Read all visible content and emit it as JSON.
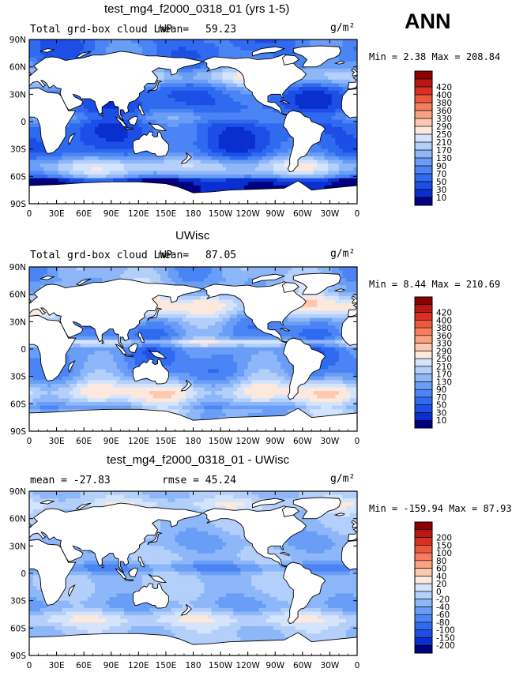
{
  "season": "ANN",
  "units": "g/m²",
  "lat_labels": [
    "90N",
    "60N",
    "30N",
    "0",
    "30S",
    "60S",
    "90S"
  ],
  "lon_labels": [
    "0",
    "30E",
    "60E",
    "90E",
    "120E",
    "150E",
    "180",
    "150W",
    "120W",
    "90W",
    "60W",
    "30W",
    "0"
  ],
  "colors": {
    "abs_scale": [
      "#000080",
      "#0a2fcf",
      "#1d4fe6",
      "#2f6af0",
      "#4b84f4",
      "#6a9ef6",
      "#8db7f8",
      "#b3cffa",
      "#d4e4fc",
      "#fde8de",
      "#fcc8b0",
      "#f9a383",
      "#f47e5e",
      "#ec5a3d",
      "#d93024",
      "#b71814",
      "#8b0000"
    ],
    "diff_scale": [
      "#000080",
      "#0a2fcf",
      "#1d4fe6",
      "#2f6af0",
      "#4b84f4",
      "#6a9ef6",
      "#8db7f8",
      "#b3cffa",
      "#d4e4fc",
      "#fde8de",
      "#fcc8b0",
      "#f9a383",
      "#f47e5e",
      "#ec5a3d",
      "#d93024",
      "#b71814",
      "#8b0000"
    ],
    "land": "#ffffff",
    "coast": "#000000"
  },
  "chart_data": [
    {
      "type": "heatmap",
      "title": "test_mg4_f2000_0318_01 (yrs 1-5)",
      "subtitle": "Total grd-box cloud LWP",
      "mean_label": "mean=",
      "mean": "59.23",
      "min_max": "Min =   2.38 Max = 208.84",
      "contour_levels": [
        "10",
        "30",
        "50",
        "70",
        "90",
        "130",
        "170",
        "210",
        "250",
        "290",
        "330",
        "360",
        "380",
        "400",
        "420"
      ],
      "xlim": [
        0,
        360
      ],
      "ylim": [
        -90,
        90
      ]
    },
    {
      "type": "heatmap",
      "title": "UWisc",
      "subtitle": "Total grd-box cloud LWP",
      "mean_label": "mean=",
      "mean": "87.05",
      "min_max": "Min =   8.44 Max = 210.69",
      "contour_levels": [
        "10",
        "30",
        "50",
        "70",
        "90",
        "130",
        "170",
        "210",
        "250",
        "290",
        "330",
        "360",
        "380",
        "400",
        "420"
      ],
      "xlim": [
        0,
        360
      ],
      "ylim": [
        -90,
        90
      ]
    },
    {
      "type": "heatmap",
      "title": "test_mg4_f2000_0318_01 - UWisc",
      "mean_text": "mean = -27.83",
      "rmse_text": "rmse =  45.24",
      "min_max": "Min = -159.94 Max =  87.93",
      "contour_levels": [
        "-200",
        "-150",
        "-100",
        "-80",
        "-60",
        "-40",
        "-20",
        "0",
        "20",
        "40",
        "60",
        "80",
        "100",
        "150",
        "200"
      ],
      "xlim": [
        0,
        360
      ],
      "ylim": [
        -90,
        90
      ]
    }
  ]
}
